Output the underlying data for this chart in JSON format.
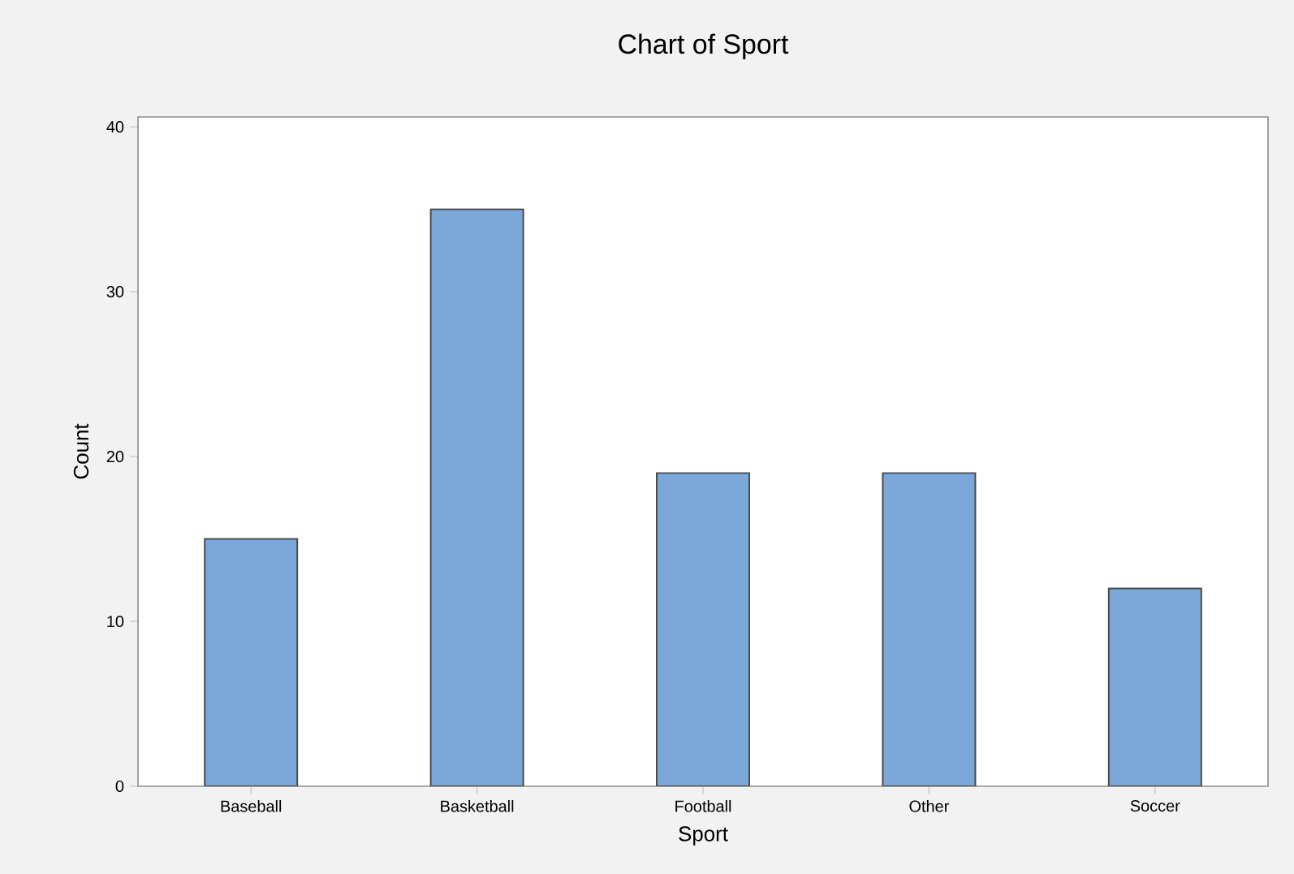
{
  "chart_data": {
    "type": "bar",
    "title": "Chart of Sport",
    "xlabel": "Sport",
    "ylabel": "Count",
    "categories": [
      "Baseball",
      "Basketball",
      "Football",
      "Other",
      "Soccer"
    ],
    "values": [
      15,
      35,
      19,
      19,
      12
    ],
    "color": "#7ba7d9",
    "ylim": [
      0,
      40.6
    ],
    "yticks": [
      0,
      10,
      20,
      30,
      40
    ]
  }
}
